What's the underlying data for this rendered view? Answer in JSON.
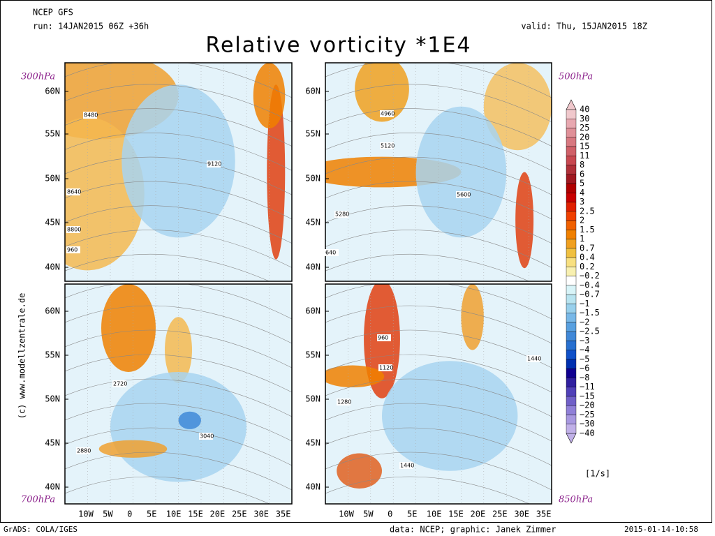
{
  "header": {
    "model": "NCEP GFS",
    "run": "run: 14JAN2015 06Z +36h",
    "valid": "valid: Thu, 15JAN2015 18Z",
    "title": "Relative vorticity *1E4"
  },
  "panels": [
    {
      "level": "300hPa",
      "lat_labels": [
        "60N",
        "55N",
        "50N",
        "45N",
        "40N"
      ],
      "contour_labels": [
        "8480",
        "9120",
        "8640",
        "8800",
        "960"
      ]
    },
    {
      "level": "500hPa",
      "lat_labels": [
        "60N",
        "55N",
        "50N",
        "45N",
        "40N"
      ],
      "contour_labels": [
        "4960",
        "5120",
        "5600",
        "5280",
        "640"
      ]
    },
    {
      "level": "700hPa",
      "lat_labels": [
        "60N",
        "55N",
        "50N",
        "45N",
        "40N"
      ],
      "lon_labels": [
        "10W",
        "5W",
        "0",
        "5E",
        "10E",
        "15E",
        "20E",
        "25E",
        "30E",
        "35E"
      ],
      "contour_labels": [
        "2720",
        "2880",
        "3040"
      ]
    },
    {
      "level": "850hPa",
      "lat_labels": [
        "60N",
        "55N",
        "50N",
        "45N",
        "40N"
      ],
      "lon_labels": [
        "10W",
        "5W",
        "0",
        "5E",
        "10E",
        "15E",
        "20E",
        "25E",
        "30E",
        "35E"
      ],
      "contour_labels": [
        "960",
        "1120",
        "1440",
        "1280",
        "1440"
      ]
    }
  ],
  "colorbar": {
    "labels": [
      "40",
      "30",
      "25",
      "20",
      "15",
      "11",
      "8",
      "6",
      "5",
      "4",
      "3",
      "2.5",
      "2",
      "1.5",
      "1",
      "0.7",
      "0.4",
      "0.2",
      "−0.2",
      "−0.4",
      "−0.7",
      "−1",
      "−1.5",
      "−2",
      "−2.5",
      "−3",
      "−4",
      "−5",
      "−6",
      "−8",
      "−11",
      "−15",
      "−20",
      "−25",
      "−30",
      "−40"
    ],
    "colors": [
      "#f0c8cc",
      "#e8a8b0",
      "#e09098",
      "#d87880",
      "#d06068",
      "#c84850",
      "#b03038",
      "#a01820",
      "#b00000",
      "#c80000",
      "#e02000",
      "#f04000",
      "#f06000",
      "#f08000",
      "#f0a020",
      "#f0c040",
      "#f8e080",
      "#f8f0b0",
      "#ffffff",
      "#d8f4f8",
      "#b8e4f0",
      "#98d0ec",
      "#78b8e8",
      "#58a0e0",
      "#4088d8",
      "#2870d0",
      "#1050c8",
      "#0030b0",
      "#100090",
      "#3020a0",
      "#5040b8",
      "#7060c8",
      "#9080d8",
      "#a898e0",
      "#c0b0e8"
    ],
    "unit": "[1/s]"
  },
  "side_credit": "(c) www.modellzentrale.de",
  "footer": {
    "left": "GrADS: COLA/IGES",
    "center": "data: NCEP; graphic: Janek Zimmer",
    "right": "2015-01-14-10:58"
  }
}
